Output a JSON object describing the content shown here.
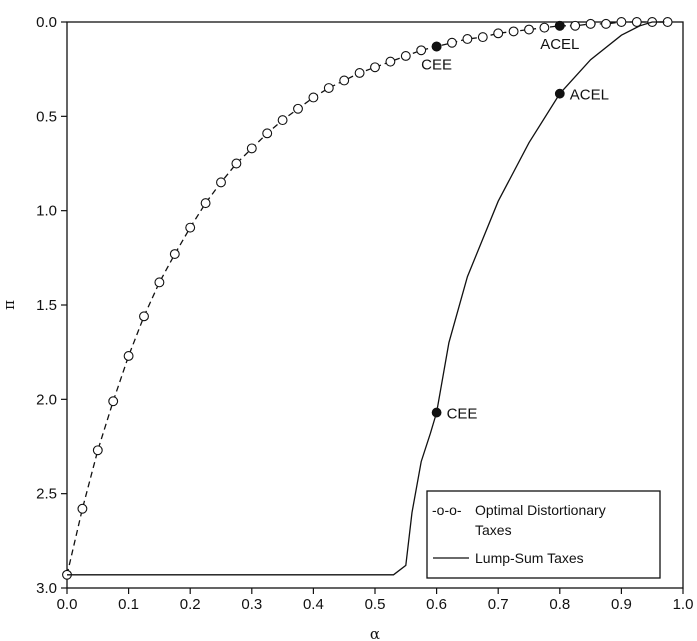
{
  "chart_data": {
    "type": "line",
    "xlabel": "α",
    "ylabel": "π",
    "xlim": [
      0.0,
      1.0
    ],
    "ylim": [
      0.0,
      3.0
    ],
    "y_inverted": true,
    "xticks": [
      "0.0",
      "0.1",
      "0.2",
      "0.3",
      "0.4",
      "0.5",
      "0.6",
      "0.7",
      "0.8",
      "0.9",
      "1.0"
    ],
    "yticks": [
      "0.0",
      "0.5",
      "1.0",
      "1.5",
      "2.0",
      "2.5",
      "3.0"
    ],
    "grid": false,
    "legend_position": "bottom-right",
    "series": [
      {
        "name": "Optimal Distortionary Taxes",
        "legend_marker": "-o-o-",
        "style": "dashed-with-open-circles",
        "color": "#111111",
        "x": [
          0.0,
          0.025,
          0.05,
          0.075,
          0.1,
          0.125,
          0.15,
          0.175,
          0.2,
          0.225,
          0.25,
          0.275,
          0.3,
          0.325,
          0.35,
          0.375,
          0.4,
          0.425,
          0.45,
          0.475,
          0.5,
          0.525,
          0.55,
          0.575,
          0.6,
          0.625,
          0.65,
          0.675,
          0.7,
          0.725,
          0.75,
          0.775,
          0.8,
          0.825,
          0.85,
          0.875,
          0.9,
          0.925,
          0.95,
          0.975
        ],
        "y": [
          2.93,
          2.58,
          2.27,
          2.01,
          1.77,
          1.56,
          1.38,
          1.23,
          1.09,
          0.96,
          0.85,
          0.75,
          0.67,
          0.59,
          0.52,
          0.46,
          0.4,
          0.35,
          0.31,
          0.27,
          0.24,
          0.21,
          0.18,
          0.15,
          0.13,
          0.11,
          0.09,
          0.08,
          0.06,
          0.05,
          0.04,
          0.03,
          0.02,
          0.02,
          0.01,
          0.01,
          0.0,
          0.0,
          0.0,
          0.0
        ]
      },
      {
        "name": "Lump-Sum Taxes",
        "style": "solid",
        "color": "#111111",
        "x": [
          0.0,
          0.53,
          0.55,
          0.56,
          0.575,
          0.59,
          0.6,
          0.62,
          0.65,
          0.7,
          0.75,
          0.8,
          0.85,
          0.9,
          0.93,
          0.95,
          0.97
        ],
        "y": [
          2.93,
          2.93,
          2.88,
          2.6,
          2.33,
          2.18,
          2.07,
          1.7,
          1.35,
          0.95,
          0.64,
          0.38,
          0.2,
          0.07,
          0.02,
          0.0,
          0.0
        ]
      }
    ],
    "annotations": [
      {
        "text": "CEE",
        "x": 0.6,
        "y": 0.13,
        "series": "Optimal Distortionary Taxes",
        "label_pos": "below"
      },
      {
        "text": "ACEL",
        "x": 0.8,
        "y": 0.02,
        "series": "Optimal Distortionary Taxes",
        "label_pos": "below"
      },
      {
        "text": "ACEL",
        "x": 0.8,
        "y": 0.38,
        "series": "Lump-Sum Taxes",
        "label_pos": "right"
      },
      {
        "text": "CEE",
        "x": 0.6,
        "y": 2.07,
        "series": "Lump-Sum Taxes",
        "label_pos": "right"
      }
    ],
    "legend": {
      "entries": [
        {
          "marker": "-o-o-",
          "lines": [
            "Optimal Distortionary",
            "Taxes"
          ]
        },
        {
          "marker": "",
          "lines": [
            "Lump-Sum Taxes"
          ]
        }
      ]
    }
  }
}
